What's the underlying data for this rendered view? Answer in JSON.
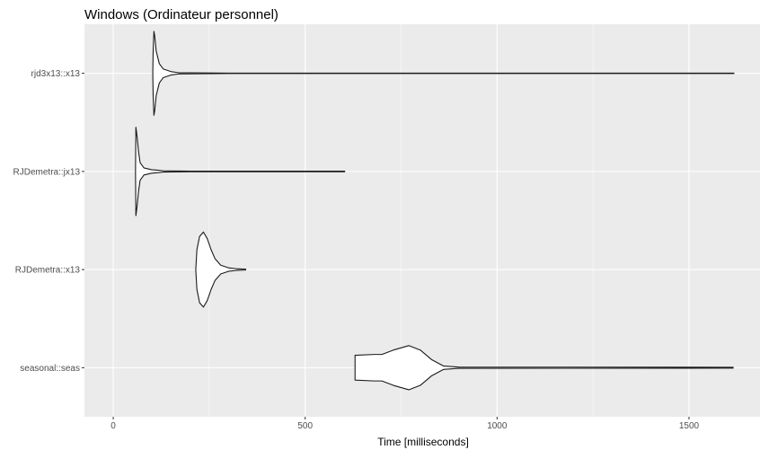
{
  "chart_data": {
    "type": "violin",
    "title": "Windows (Ordinateur personnel)",
    "xlabel": "Time [milliseconds]",
    "ylabel": "",
    "xlim": [
      -75,
      1685
    ],
    "x_ticks": [
      0,
      500,
      1000,
      1500
    ],
    "x_tick_labels": [
      "0",
      "500",
      "1000",
      "1500"
    ],
    "categories": [
      "rjd3x13::x13",
      "RJDemetra::jx13",
      "RJDemetra::x13",
      "seasonal::seas"
    ],
    "grid": true,
    "colors": {
      "panel": "#ebebeb",
      "grid_major": "#ffffff",
      "violin_stroke": "#1a1a1a",
      "violin_fill": "#ffffff"
    },
    "series": [
      {
        "category": "rjd3x13::x13",
        "min": 103,
        "mode": 107,
        "max": 1617,
        "profile": [
          [
            103,
            0.0
          ],
          [
            104,
            0.5
          ],
          [
            106,
            0.95
          ],
          [
            108,
            0.85
          ],
          [
            112,
            0.5
          ],
          [
            120,
            0.22
          ],
          [
            130,
            0.1
          ],
          [
            150,
            0.04
          ],
          [
            170,
            0.015
          ],
          [
            300,
            0.005
          ],
          [
            1617,
            0.004
          ]
        ]
      },
      {
        "category": "RJDemetra::jx13",
        "min": 58,
        "mode": 60,
        "max": 603,
        "profile": [
          [
            58,
            0.0
          ],
          [
            59,
            1.0
          ],
          [
            62,
            0.8
          ],
          [
            66,
            0.45
          ],
          [
            70,
            0.2
          ],
          [
            80,
            0.08
          ],
          [
            100,
            0.04
          ],
          [
            115,
            0.03
          ],
          [
            130,
            0.015
          ],
          [
            200,
            0.007
          ],
          [
            603,
            0.007
          ]
        ]
      },
      {
        "category": "RJDemetra::x13",
        "min": 215,
        "mode": 235,
        "max": 345,
        "profile": [
          [
            215,
            0.0
          ],
          [
            218,
            0.45
          ],
          [
            225,
            0.75
          ],
          [
            235,
            0.85
          ],
          [
            245,
            0.7
          ],
          [
            255,
            0.45
          ],
          [
            265,
            0.25
          ],
          [
            280,
            0.1
          ],
          [
            300,
            0.04
          ],
          [
            320,
            0.02
          ],
          [
            345,
            0.01
          ]
        ]
      },
      {
        "category": "seasonal::seas",
        "min": 630,
        "mode": 770,
        "max": 1615,
        "profile": [
          [
            630,
            0.28
          ],
          [
            680,
            0.3
          ],
          [
            700,
            0.3
          ],
          [
            730,
            0.4
          ],
          [
            770,
            0.5
          ],
          [
            800,
            0.4
          ],
          [
            830,
            0.18
          ],
          [
            860,
            0.04
          ],
          [
            900,
            0.015
          ],
          [
            1615,
            0.01
          ]
        ]
      }
    ]
  }
}
